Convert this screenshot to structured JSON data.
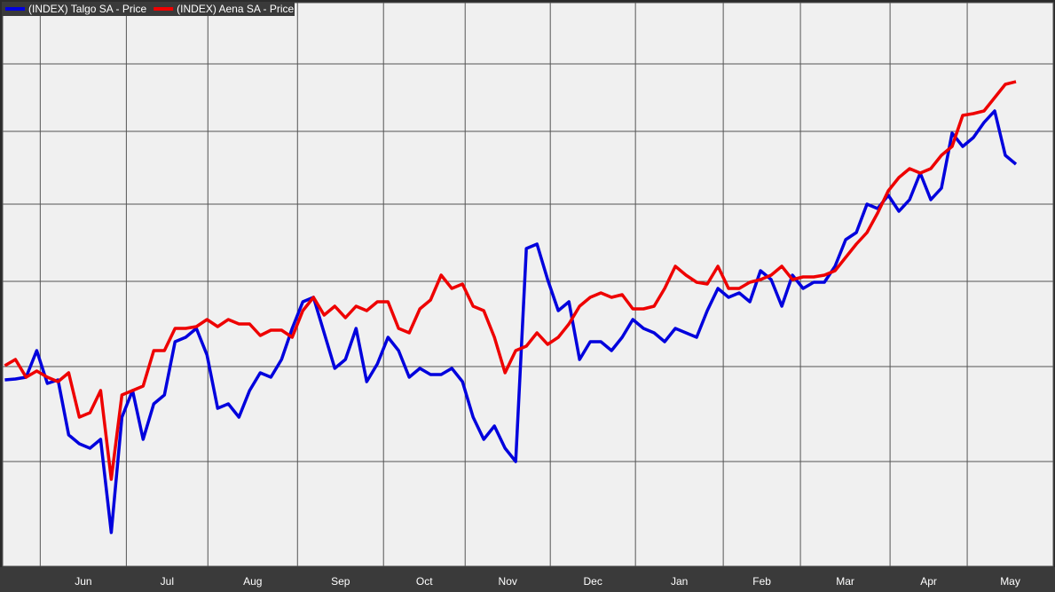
{
  "chart_data": {
    "type": "line",
    "categories": [
      "Jun",
      "Jul",
      "Aug",
      "Sep",
      "Oct",
      "Nov",
      "Dec",
      "Jan",
      "Feb",
      "Mar",
      "Apr",
      "May"
    ],
    "x": [
      0,
      1,
      2,
      3,
      4,
      5,
      6,
      7,
      8,
      9,
      10,
      11,
      12,
      13,
      14,
      15,
      16,
      17,
      18,
      19,
      20,
      21,
      22,
      23,
      24,
      25,
      26,
      27,
      28,
      29,
      30,
      31,
      32,
      33,
      34,
      35,
      36,
      37,
      38,
      39,
      40,
      41,
      42,
      43,
      44,
      45,
      46,
      47,
      48,
      49,
      50,
      51,
      52,
      53,
      54,
      55,
      56,
      57,
      58,
      59,
      60,
      61,
      62,
      63,
      64,
      65,
      66,
      67,
      68,
      69,
      70,
      71,
      72,
      73,
      74,
      75,
      76,
      77,
      78,
      79,
      80,
      81,
      82,
      83,
      84,
      85,
      86,
      87,
      88,
      89,
      90,
      91,
      92,
      93,
      94,
      95
    ],
    "xlim": [
      -0.2,
      98.5
    ],
    "xticks": [
      3.33,
      11.42,
      19.08,
      27.5,
      35.58,
      43.25,
      51.25,
      59.25,
      67.5,
      74.75,
      83.17,
      90.42
    ],
    "ylim": [
      0,
      635
    ],
    "yticks": [
      118,
      225,
      321,
      408,
      490,
      566
    ],
    "grid": true,
    "series": [
      {
        "name": "(INDEX) Talgo SA - Price",
        "color": "#0000dd",
        "values": [
          210,
          211,
          213,
          243,
          206,
          210,
          148,
          138,
          133,
          143,
          38,
          168,
          198,
          143,
          183,
          193,
          253,
          258,
          268,
          238,
          178,
          183,
          168,
          198,
          218,
          213,
          233,
          268,
          298,
          303,
          263,
          223,
          233,
          268,
          208,
          228,
          258,
          243,
          213,
          223,
          216,
          216,
          223,
          208,
          168,
          143,
          158,
          133,
          118,
          358,
          363,
          323,
          288,
          298,
          233,
          253,
          253,
          243,
          258,
          278,
          268,
          263,
          253,
          268,
          263,
          258,
          288,
          313,
          303,
          308,
          298,
          333,
          323,
          293,
          328,
          313,
          320,
          320,
          338,
          368,
          376,
          408,
          403,
          418,
          400,
          413,
          443,
          413,
          426,
          488,
          473,
          483,
          500,
          513,
          463,
          453
        ]
      },
      {
        "name": "(INDEX) Aena SA - Price",
        "color": "#ee0000",
        "values": [
          226,
          233,
          213,
          220,
          213,
          208,
          218,
          168,
          173,
          198,
          98,
          193,
          198,
          203,
          243,
          243,
          268,
          268,
          270,
          278,
          270,
          278,
          273,
          273,
          260,
          266,
          266,
          258,
          288,
          303,
          283,
          293,
          280,
          293,
          288,
          298,
          298,
          268,
          263,
          290,
          300,
          328,
          313,
          318,
          293,
          288,
          258,
          218,
          243,
          248,
          263,
          250,
          258,
          273,
          293,
          303,
          308,
          303,
          306,
          290,
          290,
          293,
          313,
          338,
          328,
          320,
          318,
          338,
          313,
          313,
          320,
          323,
          328,
          338,
          323,
          326,
          326,
          328,
          333,
          348,
          363,
          376,
          398,
          423,
          438,
          448,
          443,
          448,
          463,
          473,
          508,
          510,
          513,
          528,
          543,
          546
        ]
      }
    ]
  }
}
